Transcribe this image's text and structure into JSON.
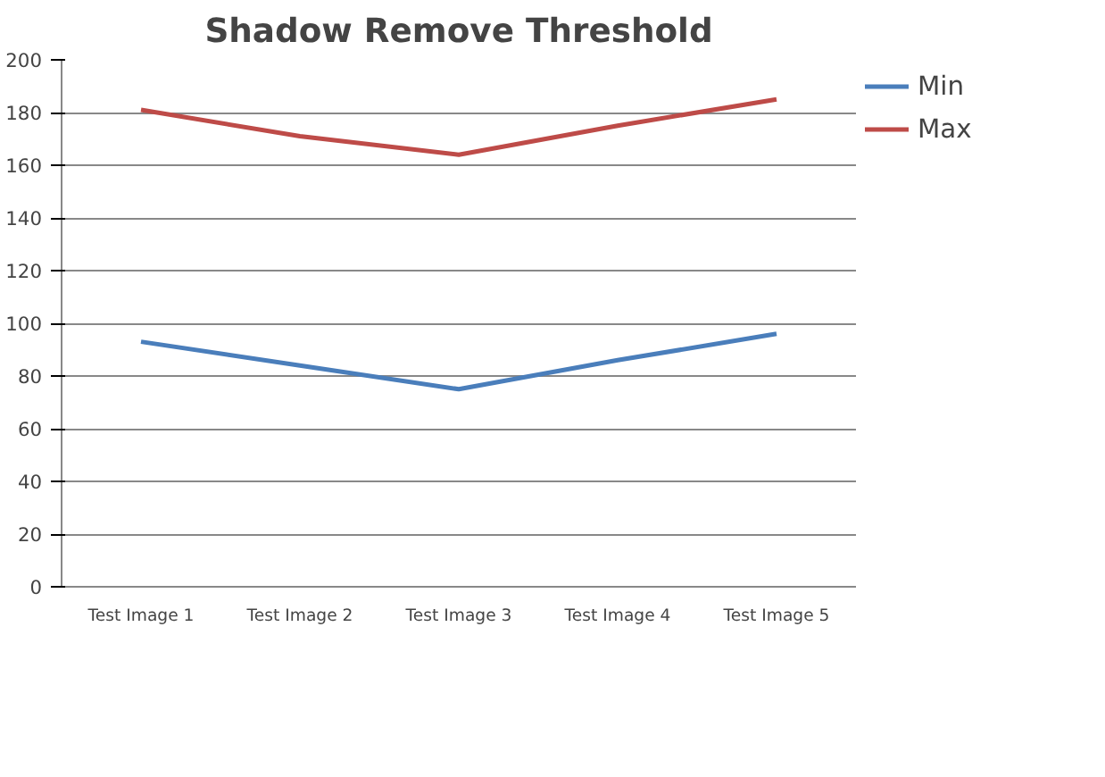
{
  "chart_data": {
    "type": "line",
    "title": "Shadow Remove Threshold",
    "categories": [
      "Test Image 1",
      "Test Image 2",
      "Test Image 3",
      "Test Image 4",
      "Test Image 5"
    ],
    "series": [
      {
        "name": "Min",
        "color": "#4a7ebb",
        "values": [
          93,
          84,
          75,
          86,
          96
        ]
      },
      {
        "name": "Max",
        "color": "#be4b48",
        "values": [
          181,
          171,
          164,
          175,
          185
        ]
      }
    ],
    "ylim": [
      0,
      200
    ],
    "yticks": [
      0,
      20,
      40,
      60,
      80,
      100,
      120,
      140,
      160,
      180,
      200
    ],
    "grid": "y",
    "legend": "right",
    "marker": "none"
  }
}
